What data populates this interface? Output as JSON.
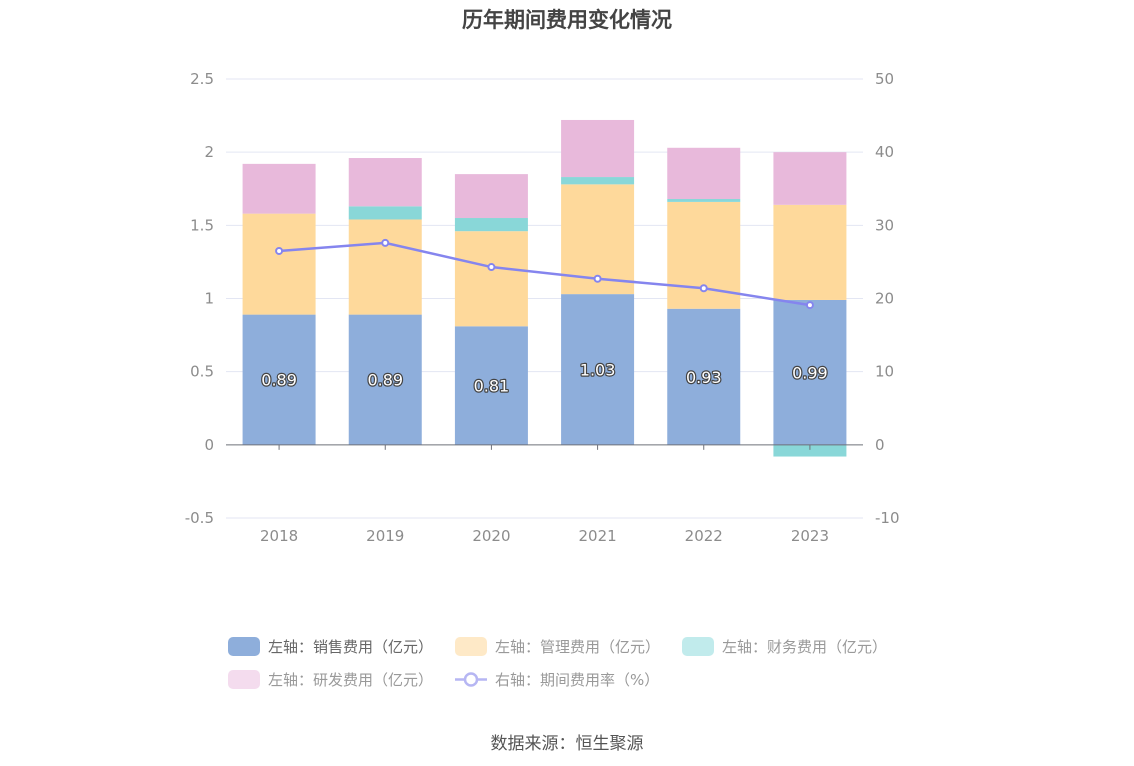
{
  "chart_data": {
    "type": "bar",
    "title": "历年期间费用变化情况",
    "categories": [
      "2018",
      "2019",
      "2020",
      "2021",
      "2022",
      "2023"
    ],
    "stacked": true,
    "series": [
      {
        "name": "左轴：销售费用（亿元）",
        "axis": "left",
        "type": "bar",
        "color": "#8eaedb",
        "values": [
          0.89,
          0.89,
          0.81,
          1.03,
          0.93,
          0.99
        ],
        "labels": [
          "0.89",
          "0.89",
          "0.81",
          "1.03",
          "0.93",
          "0.99"
        ]
      },
      {
        "name": "左轴：管理费用（亿元）",
        "axis": "left",
        "type": "bar",
        "color": "#fed99b",
        "values": [
          0.69,
          0.65,
          0.65,
          0.75,
          0.73,
          0.65
        ]
      },
      {
        "name": "左轴：财务费用（亿元）",
        "axis": "left",
        "type": "bar",
        "color": "#89d7d8",
        "values": [
          0.0,
          0.09,
          0.09,
          0.05,
          0.02,
          -0.08
        ]
      },
      {
        "name": "左轴：研发费用（亿元）",
        "axis": "left",
        "type": "bar",
        "color": "#e8b9db",
        "values": [
          0.34,
          0.33,
          0.3,
          0.39,
          0.35,
          0.36
        ]
      },
      {
        "name": "右轴：期间费用率（%）",
        "axis": "right",
        "type": "line",
        "color": "#8585ee",
        "values": [
          26.5,
          27.6,
          24.3,
          22.7,
          21.4,
          19.1
        ]
      }
    ],
    "y_left": {
      "ticks": [
        "2.5",
        "2",
        "1.5",
        "1",
        "0.5",
        "0",
        "-0.5"
      ],
      "min": -0.5,
      "max": 2.5
    },
    "y_right": {
      "ticks": [
        "50",
        "40",
        "30",
        "20",
        "10",
        "0",
        "-10"
      ],
      "min": -10,
      "max": 50
    },
    "grid": true,
    "legend_position": "bottom",
    "source": "数据来源：恒生聚源"
  }
}
